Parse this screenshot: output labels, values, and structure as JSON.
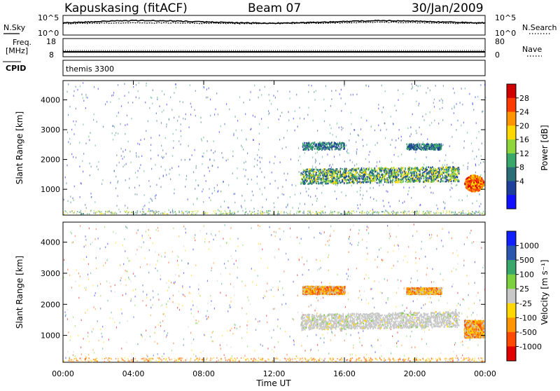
{
  "header": {
    "station": "Kapuskasing (fitACF)",
    "beam": "Beam 07",
    "date": "30/Jan/2009",
    "cpid_value": "themis 3300"
  },
  "side_labels": {
    "nsky": "N.Sky",
    "freq_line1": "Freq.",
    "freq_line2": "[MHz]",
    "cpid": "CPID",
    "nsearch": "N.Search",
    "nave": "Nave"
  },
  "chart_data": [
    {
      "type": "line",
      "name_panel": "noise",
      "y_left_ticks": [
        "10^5",
        "10^0"
      ],
      "y_right_ticks": [
        "10^5",
        "10^0"
      ],
      "series": [
        {
          "name": "N.Sky",
          "x": [
            0,
            2,
            4,
            6,
            8,
            10,
            12,
            14,
            16,
            18,
            20,
            22,
            24
          ],
          "values": [
            3.2,
            3.6,
            3.9,
            3.8,
            3.5,
            3.2,
            3.1,
            3.3,
            3.6,
            3.9,
            3.7,
            3.4,
            3.2
          ]
        },
        {
          "name": "N.Search",
          "x": [
            0,
            2,
            4,
            6,
            8,
            10,
            12,
            14,
            16,
            18,
            20,
            22,
            24
          ],
          "values": [
            3.0,
            3.1,
            3.2,
            3.2,
            3.1,
            3.0,
            3.0,
            3.1,
            3.2,
            3.4,
            3.3,
            3.1,
            3.0
          ]
        }
      ]
    },
    {
      "type": "line",
      "name_panel": "frequency",
      "y_left_ticks": [
        "18",
        "8"
      ],
      "y_right_ticks": [
        "80",
        "0"
      ],
      "series": [
        {
          "name": "Freq.",
          "x": [
            0,
            24
          ],
          "values": [
            10.5,
            10.5
          ]
        },
        {
          "name": "Nave",
          "x": [
            0,
            24
          ],
          "values": [
            14,
            14
          ]
        }
      ]
    },
    {
      "type": "heatmap",
      "name_panel": "power",
      "xlabel": "",
      "ylabel": "Slant Range [km]",
      "xlim": [
        0,
        24
      ],
      "ylim": [
        180,
        4600
      ],
      "y_ticks": [
        "1000",
        "2000",
        "3000",
        "4000"
      ],
      "colorbar_label": "Power [dB]",
      "colorbar_ticks": [
        "28",
        "24",
        "20",
        "16",
        "12",
        "8",
        "4"
      ],
      "colorbar_colors": [
        "#d00000",
        "#ff3a00",
        "#ff9500",
        "#ffd800",
        "#8ed63b",
        "#3aa86b",
        "#2a6e78",
        "#1f3f9c",
        "#1010ff"
      ],
      "echo_regions": [
        {
          "t0": 13.5,
          "t1": 22.5,
          "r0": 1200,
          "r1": 1700,
          "level": "high"
        },
        {
          "t0": 13.6,
          "t1": 16.0,
          "r0": 2350,
          "r1": 2600,
          "level": "mid"
        },
        {
          "t0": 19.5,
          "t1": 21.5,
          "r0": 2350,
          "r1": 2550,
          "level": "mid"
        },
        {
          "t0": 22.8,
          "t1": 23.9,
          "r0": 950,
          "r1": 1500,
          "level": "max"
        }
      ]
    },
    {
      "type": "heatmap",
      "name_panel": "velocity",
      "xlabel": "Time UT",
      "ylabel": "Slant Range [km]",
      "xlim": [
        0,
        24
      ],
      "ylim": [
        180,
        4600
      ],
      "x_ticks": [
        "00:00",
        "04:00",
        "08:00",
        "12:00",
        "16:00",
        "20:00",
        "00:00"
      ],
      "y_ticks": [
        "1000",
        "2000",
        "3000",
        "4000"
      ],
      "colorbar_label": "Velocity [m s⁻¹]",
      "colorbar_ticks": [
        "1000",
        "500",
        "100",
        "25",
        "-25",
        "-100",
        "-500",
        "-1000"
      ],
      "colorbar_colors": [
        "#1020ff",
        "#2a56b0",
        "#3aa86b",
        "#7cd23e",
        "#c8c8c8",
        "#ffd800",
        "#ff9500",
        "#ff4a00",
        "#e00000"
      ],
      "echo_regions": [
        {
          "t0": 13.5,
          "t1": 22.5,
          "r0": 1200,
          "r1": 1700,
          "level": "ground"
        },
        {
          "t0": 13.6,
          "t1": 16.0,
          "r0": 2350,
          "r1": 2600,
          "level": "away"
        },
        {
          "t0": 19.5,
          "t1": 21.5,
          "r0": 2350,
          "r1": 2550,
          "level": "away"
        },
        {
          "t0": 22.8,
          "t1": 23.9,
          "r0": 950,
          "r1": 1500,
          "level": "away"
        }
      ]
    }
  ]
}
